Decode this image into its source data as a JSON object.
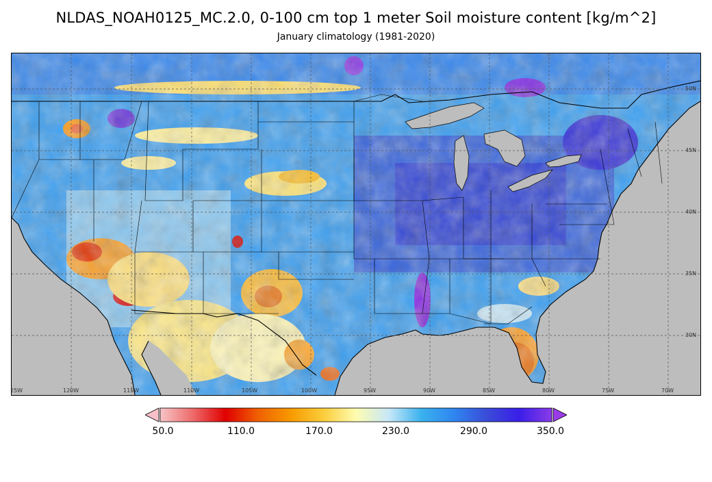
{
  "header": {
    "title": "NLDAS_NOAH0125_MC.2.0, 0-100 cm top 1 meter Soil moisture content [kg/m^2]",
    "subtitle": "January climatology (1981-2020)"
  },
  "map": {
    "lon_labels": [
      "25W",
      "120W",
      "115W",
      "110W",
      "105W",
      "100W",
      "95W",
      "90W",
      "85W",
      "80W",
      "75W",
      "70W"
    ],
    "lat_labels": [
      "50N",
      "45N",
      "40N",
      "35N",
      "30N"
    ],
    "land_color": "#b9b9b9"
  },
  "colorbar": {
    "tick_labels": [
      "50.0",
      "110.0",
      "170.0",
      "230.0",
      "290.0",
      "350.0"
    ],
    "min": 50.0,
    "max": 350.0,
    "colors": [
      "#f7c5c8",
      "#ee6a6a",
      "#e00000",
      "#f06000",
      "#f79a00",
      "#fbcd3a",
      "#fefcb0",
      "#c8e8f8",
      "#3ab2ee",
      "#2f86f0",
      "#3a4cd8",
      "#3a1ee8",
      "#8a3ce8"
    ],
    "under_color": "#f8c0c8",
    "over_color": "#9a3ce8"
  }
}
